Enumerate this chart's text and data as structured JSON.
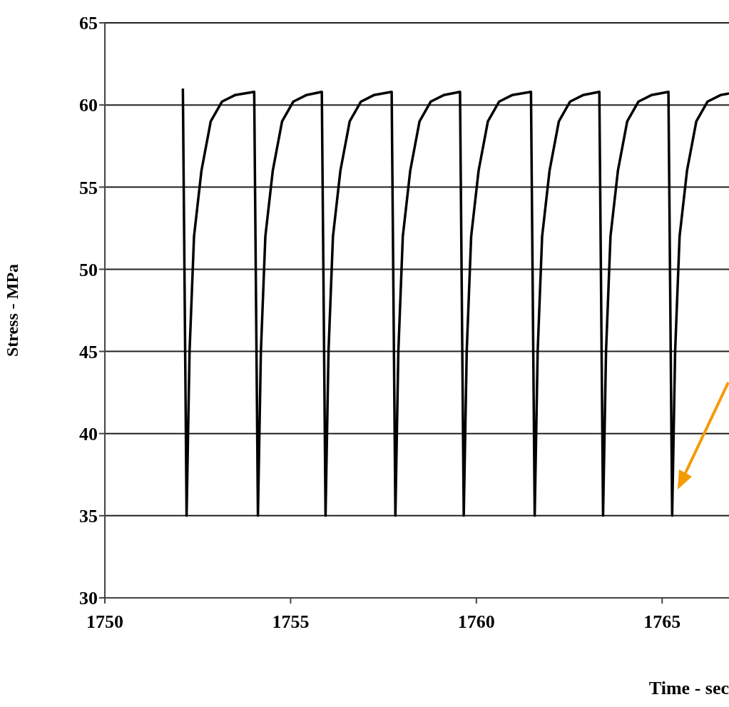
{
  "chart_data": {
    "type": "line",
    "xlabel": "Time - sec",
    "ylabel": "Stress - MPa",
    "x": [
      1752.1,
      1752.2,
      1752.28,
      1752.4,
      1752.6,
      1752.85,
      1753.15,
      1753.5,
      1754.02,
      1754.12,
      1754.2,
      1754.32,
      1754.52,
      1754.77,
      1755.07,
      1755.42,
      1755.84,
      1755.94,
      1756.02,
      1756.14,
      1756.34,
      1756.59,
      1756.89,
      1757.24,
      1757.72,
      1757.82,
      1757.9,
      1758.02,
      1758.22,
      1758.47,
      1758.77,
      1759.12,
      1759.56,
      1759.66,
      1759.74,
      1759.86,
      1760.06,
      1760.31,
      1760.61,
      1760.96,
      1761.47,
      1761.57,
      1761.65,
      1761.77,
      1761.97,
      1762.22,
      1762.52,
      1762.87,
      1763.31,
      1763.41,
      1763.49,
      1763.61,
      1763.81,
      1764.06,
      1764.36,
      1764.71,
      1765.17,
      1765.27,
      1765.35,
      1765.47,
      1765.67,
      1765.92,
      1766.22,
      1766.57,
      1766.8
    ],
    "series": [
      {
        "color": "#000000",
        "values": [
          61,
          35,
          45,
          52,
          56,
          59,
          60.2,
          60.6,
          60.8,
          35,
          45,
          52,
          56,
          59,
          60.2,
          60.6,
          60.8,
          35,
          45,
          52,
          56,
          59,
          60.2,
          60.6,
          60.8,
          35,
          45,
          52,
          56,
          59,
          60.2,
          60.6,
          60.8,
          35,
          45,
          52,
          56,
          59,
          60.2,
          60.6,
          60.8,
          35,
          45,
          52,
          56,
          59,
          60.2,
          60.6,
          60.8,
          35,
          45,
          52,
          56,
          59,
          60.2,
          60.6,
          60.8,
          35,
          45,
          52,
          56,
          59,
          60.2,
          60.6,
          60.7
        ]
      }
    ],
    "xlim": [
      1750,
      1766.8
    ],
    "xticks": [
      1750,
      1755,
      1760,
      1765
    ],
    "ylim": [
      30,
      65
    ],
    "yticks": [
      30,
      35,
      40,
      45,
      50,
      55,
      60,
      65
    ],
    "grid": "y",
    "line_style": "solid"
  }
}
